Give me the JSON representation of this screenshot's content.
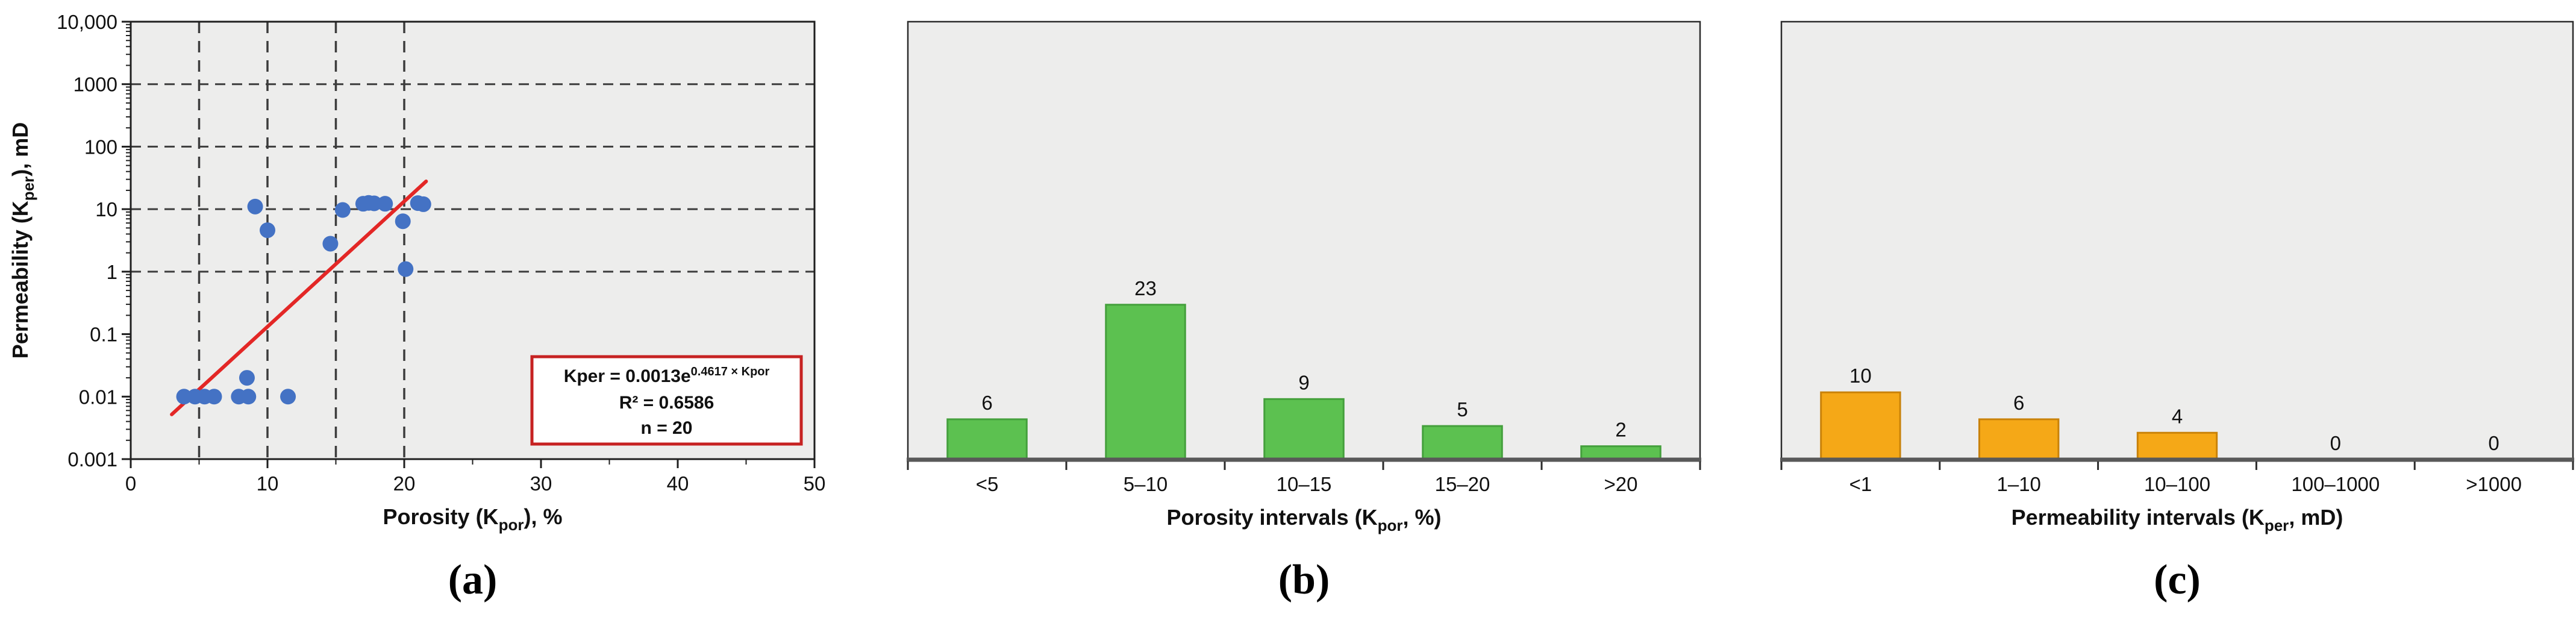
{
  "page": {
    "background": "#ffffff",
    "plot_background": "#EDEDEC"
  },
  "chart_data": [
    {
      "id": "permeability-vs-porosity-scatter",
      "type": "scatter",
      "caption": "(a)",
      "xlabel": {
        "parts": [
          {
            "text": "Porosity (K"
          },
          {
            "text": "por",
            "sub": true
          },
          {
            "text": "), %"
          }
        ]
      },
      "ylabel": {
        "parts": [
          {
            "text": "Permeability (K"
          },
          {
            "text": "per",
            "sub": true
          },
          {
            "text": "), mD"
          }
        ]
      },
      "xlim": [
        0,
        50
      ],
      "ylim": [
        0.001,
        10000
      ],
      "x_ticks": [
        {
          "v": 0,
          "label": "0"
        },
        {
          "v": 10,
          "label": "10"
        },
        {
          "v": 20,
          "label": "20"
        },
        {
          "v": 30,
          "label": "30"
        },
        {
          "v": 40,
          "label": "40"
        },
        {
          "v": 50,
          "label": "50"
        }
      ],
      "x_minor_ticks": [
        5,
        15,
        25,
        35,
        45
      ],
      "y_ticks": [
        {
          "v": 10000,
          "label": "10,000"
        },
        {
          "v": 1000,
          "label": "1000"
        },
        {
          "v": 100,
          "label": "100"
        },
        {
          "v": 10,
          "label": "10"
        },
        {
          "v": 1,
          "label": "1"
        },
        {
          "v": 0.1,
          "label": "0.1"
        },
        {
          "v": 0.01,
          "label": "0.01"
        },
        {
          "v": 0.001,
          "label": "0.001"
        }
      ],
      "x_gridlines": [
        5,
        10,
        15,
        20
      ],
      "y_gridlines": [
        1000,
        100,
        10,
        1
      ],
      "grid": "dashed",
      "legend": "none",
      "points": [
        [
          3.9,
          0.01
        ],
        [
          4.7,
          0.01
        ],
        [
          5.4,
          0.01
        ],
        [
          6.1,
          0.01
        ],
        [
          7.9,
          0.01
        ],
        [
          8.5,
          0.02
        ],
        [
          8.6,
          0.01
        ],
        [
          11.5,
          0.01
        ],
        [
          9.1,
          11
        ],
        [
          10,
          4.6
        ],
        [
          14.6,
          2.8
        ],
        [
          15.5,
          9.7
        ],
        [
          17.0,
          12.2
        ],
        [
          17.4,
          12.6
        ],
        [
          17.8,
          12.4
        ],
        [
          18.6,
          12.2
        ],
        [
          19.9,
          6.4
        ],
        [
          20.1,
          1.1
        ],
        [
          21.0,
          12.5
        ],
        [
          21.4,
          12
        ]
      ],
      "point_color": "#4472C4",
      "trend": {
        "name": "exponential-fit",
        "a": 0.0013,
        "b": 0.4617,
        "x_start": 3.0,
        "x_end": 21.6,
        "color": "#E32726"
      },
      "annotation": {
        "equation_main": "Kper = 0.0013e",
        "equation_exponent": "0.4617 × Kpor",
        "r_squared": "R² = 0.6586",
        "n": "n = 20",
        "text_color": "#D42B23",
        "border_color": "#C62222",
        "bg": "#FFFFFF"
      }
    },
    {
      "id": "porosity-interval-histogram",
      "type": "bar",
      "caption": "(b)",
      "categories": [
        "<5",
        "5–10",
        "10–15",
        "15–20",
        ">20"
      ],
      "values": [
        6,
        23,
        9,
        5,
        2
      ],
      "xlabel": {
        "parts": [
          {
            "text": "Porosity intervals (K"
          },
          {
            "text": "por",
            "sub": true
          },
          {
            "text": ", %)"
          }
        ]
      },
      "ylim": [
        0,
        65
      ],
      "bar_color": "#5CC150",
      "bar_edge": "#44A03C"
    },
    {
      "id": "permeability-interval-histogram",
      "type": "bar",
      "caption": "(c)",
      "categories": [
        "<1",
        "1–10",
        "10–100",
        "100–1000",
        ">1000"
      ],
      "values": [
        10,
        6,
        4,
        0,
        0
      ],
      "xlabel": {
        "parts": [
          {
            "text": "Permeability intervals (K"
          },
          {
            "text": "per",
            "sub": true
          },
          {
            "text": ", mD)"
          }
        ]
      },
      "ylim": [
        0,
        65
      ],
      "bar_color": "#F5A817",
      "bar_edge": "#C98209"
    }
  ]
}
